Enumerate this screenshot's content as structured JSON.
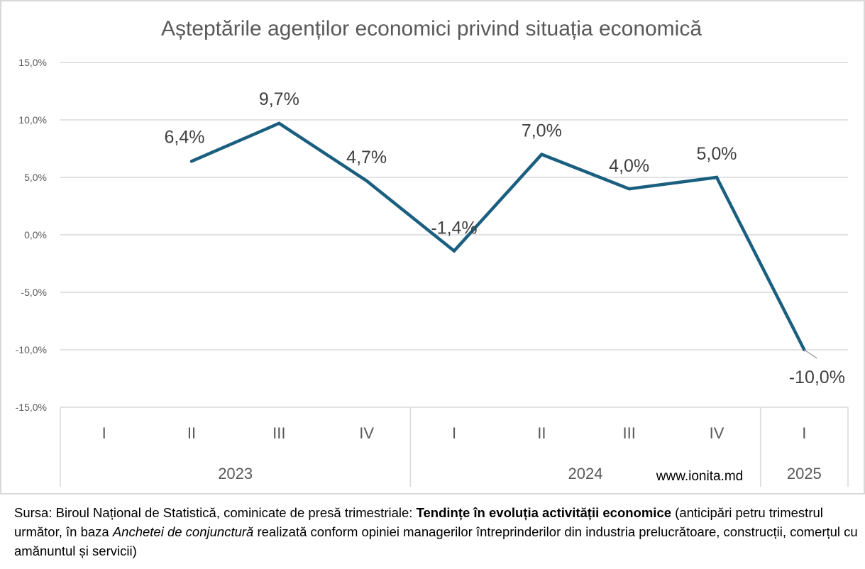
{
  "chart_data": {
    "type": "line",
    "title": "Așteptările agenților economici privind situația economică",
    "xlabel": "",
    "ylabel": "",
    "ylim": [
      -15,
      15
    ],
    "yticks": [
      15,
      10,
      5,
      0,
      -5,
      -10,
      -15
    ],
    "ytick_labels": [
      "15,0%",
      "10,0%",
      "5,0%",
      "0,0%",
      "-5,0%",
      "-10,0%",
      "-15,0%"
    ],
    "grid": true,
    "legend": "none",
    "categories": [
      "I",
      "II",
      "III",
      "IV",
      "I",
      "II",
      "III",
      "IV",
      "I"
    ],
    "category_groups": [
      {
        "label": "2023",
        "count": 4
      },
      {
        "label": "2024",
        "count": 4
      },
      {
        "label": "2025",
        "count": 1
      }
    ],
    "series": [
      {
        "name": "Așteptări",
        "color": "#1a5f7f",
        "values": [
          null,
          6.4,
          9.7,
          4.7,
          -1.4,
          7.0,
          4.0,
          5.0,
          -10.0
        ],
        "labels": [
          null,
          "6,4%",
          "9,7%",
          "4,7%",
          "-1,4%",
          "7,0%",
          "4,0%",
          "5,0%",
          "-10,0%"
        ]
      }
    ],
    "annotations": [
      "www.ionita.md"
    ]
  },
  "source": {
    "prefix": "Sursa: Biroul Național de Statistică, cominicate de presă trimestriale: ",
    "bold": "Tendințe în evoluția activității  economice",
    "middle": " (anticipări petru trimestrul următor, în baza ",
    "italic": "Anchetei de conjunctură",
    "suffix": " realizată conform opiniei managerilor întreprinderilor din industria prelucrătoare, construcții, comerțul cu amănuntul și servicii)"
  }
}
